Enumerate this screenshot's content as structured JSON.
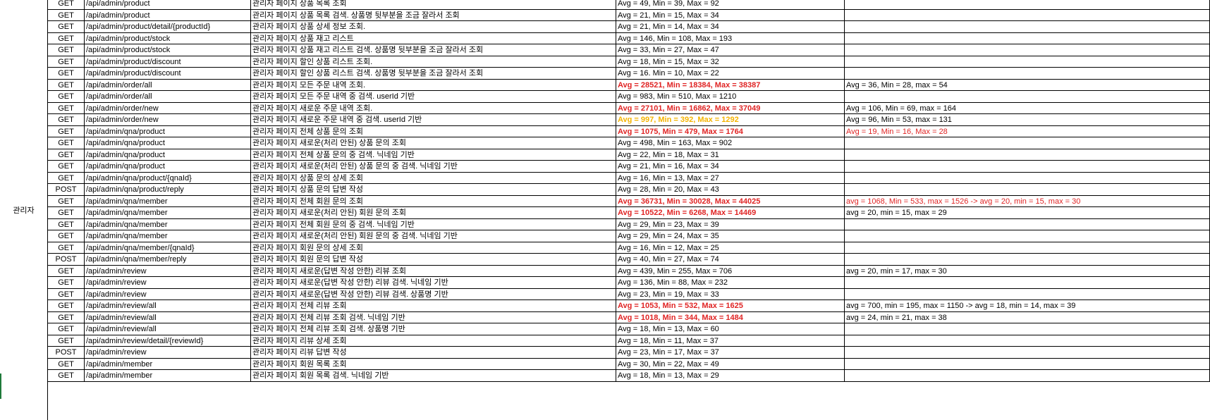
{
  "section_label": "관리자",
  "colors": {
    "red": "#e02424",
    "orange": "#f5b400",
    "black": "#000000"
  },
  "rows": [
    {
      "method": "GET",
      "path": "/api/admin/product",
      "desc": "관리자 페이지 상품 목록 조회",
      "result": "Avg = 49, Min = 39, Max = 92",
      "result_style": "normal",
      "improved": "",
      "improved_style": "normal"
    },
    {
      "method": "GET",
      "path": "/api/admin/product",
      "desc": "관리자 페이지 상품 목록 검색. 상품명 뒷부분을 조금 잘라서 조회",
      "result": "Avg = 21, Min = 15, Max = 34",
      "result_style": "normal",
      "improved": "",
      "improved_style": "normal"
    },
    {
      "method": "GET",
      "path": "/api/admin/product/detail/{productId}",
      "desc": "관리자 페이지 상품 상세 정보 조회.",
      "result": "Avg = 21, Min = 14, Max = 34",
      "result_style": "normal",
      "improved": "",
      "improved_style": "normal"
    },
    {
      "method": "GET",
      "path": "/api/admin/product/stock",
      "desc": "관리자 페이지 상품 재고 리스트",
      "result": "Avg = 146, Min = 108, Max = 193",
      "result_style": "normal",
      "improved": "",
      "improved_style": "normal"
    },
    {
      "method": "GET",
      "path": "/api/admin/product/stock",
      "desc": "관리자 페이지 상품 재고 리스트 검색. 상품명 뒷부분을 조금 잘라서 조회",
      "result": "Avg = 33, Min = 27, Max = 47",
      "result_style": "normal",
      "improved": "",
      "improved_style": "normal"
    },
    {
      "method": "GET",
      "path": "/api/admin/product/discount",
      "desc": "관리자 페이지 할인 상품 리스트 조회.",
      "result": "Avg = 18, Min = 15, Max = 32",
      "result_style": "normal",
      "improved": "",
      "improved_style": "normal"
    },
    {
      "method": "GET",
      "path": "/api/admin/product/discount",
      "desc": "관리자 페이지 할인 상품 리스트 검색. 상품명 뒷부분을 조금 잘라서 조회",
      "result": "Avg = 16. Min = 10, Max = 22",
      "result_style": "normal",
      "improved": "",
      "improved_style": "normal"
    },
    {
      "method": "GET",
      "path": "/api/admin/order/all",
      "desc": "관리자 페이지 모든 주문 내역 조회.",
      "result": "Avg = 28521, Min = 18384, Max = 38387",
      "result_style": "red-bold",
      "improved": "Avg = 36, Min = 28, max = 54",
      "improved_style": "normal"
    },
    {
      "method": "GET",
      "path": "/api/admin/order/all",
      "desc": "관리자 페이지 모든 주문 내역 중 검색. userId 기반",
      "result": "Avg = 983, Min = 510, Max = 1210",
      "result_style": "normal",
      "improved": "",
      "improved_style": "normal"
    },
    {
      "method": "GET",
      "path": "/api/admin/order/new",
      "desc": "관리자 페이지 새로운 주문 내역 조회.",
      "result": "Avg = 27101, Min = 16862, Max = 37049",
      "result_style": "red-bold",
      "improved": "Avg = 106, Min = 69, max = 164",
      "improved_style": "normal"
    },
    {
      "method": "GET",
      "path": "/api/admin/order/new",
      "desc": "관리자 페이지 새로운 주문 내역 중 검색. userId 기반",
      "result": "Avg = 997, Min = 392, Max = 1292",
      "result_style": "orange-bold",
      "improved": "Avg = 96, Min = 53, max = 131",
      "improved_style": "normal"
    },
    {
      "method": "GET",
      "path": "/api/admin/qna/product",
      "desc": "관리자 페이지 전체 상품 문의 조회",
      "result": "Avg = 1075, Min = 479, Max = 1764",
      "result_style": "red-bold",
      "improved": "Avg = 19, Min = 16, Max = 28",
      "improved_style": "red"
    },
    {
      "method": "GET",
      "path": "/api/admin/qna/product",
      "desc": "관리자 페이지 새로운(처리 안된) 상품 문의 조회",
      "result": "Avg = 498, Min = 163, Max = 902",
      "result_style": "normal",
      "improved": "",
      "improved_style": "normal"
    },
    {
      "method": "GET",
      "path": "/api/admin/qna/product",
      "desc": "관리자 페이지 전체 상품 문의 중 검색. 닉네임 기반",
      "result": "Avg = 22, Min = 18, Max = 31",
      "result_style": "normal",
      "improved": "",
      "improved_style": "normal"
    },
    {
      "method": "GET",
      "path": "/api/admin/qna/product",
      "desc": "관리자 페이지 새로운(처리 안된) 상품 문의 중 검색. 닉네임 기반",
      "result": "Avg = 21, Min = 16, Max = 34",
      "result_style": "normal",
      "improved": "",
      "improved_style": "normal"
    },
    {
      "method": "GET",
      "path": "/api/admin/qna/product/{qnaId}",
      "desc": "관리자 페이지 상품 문의 상세 조회",
      "result": "Avg = 16, Min = 13, Max = 27",
      "result_style": "normal",
      "improved": "",
      "improved_style": "normal"
    },
    {
      "method": "POST",
      "path": "/api/admin/qna/product/reply",
      "desc": "관리자 페이지 상품 문의 답변 작성",
      "result": "Avg = 28, Min = 20, Max = 43",
      "result_style": "normal",
      "improved": "",
      "improved_style": "normal"
    },
    {
      "method": "GET",
      "path": "/api/admin/qna/member",
      "desc": "관리자 페이지 전체 회원 문의 조회",
      "result": "Avg = 36731, Min = 30028, Max = 44025",
      "result_style": "red-bold",
      "improved": "avg = 1068, Min = 533, max = 1526 -> avg = 20, min = 15, max = 30",
      "improved_style": "red"
    },
    {
      "method": "GET",
      "path": "/api/admin/qna/member",
      "desc": "관리자 페이지 새로운(처리 안된) 회원 문의 조회",
      "result": "Avg = 10522, Min = 6268, Max = 14469",
      "result_style": "red-bold",
      "improved": "avg = 20, min = 15, max = 29",
      "improved_style": "normal"
    },
    {
      "method": "GET",
      "path": "/api/admin/qna/member",
      "desc": "관리자 페이지 전체 회원 문의 중 검색. 닉네임 기반",
      "result": "Avg = 29, Min = 23, Max = 39",
      "result_style": "normal",
      "improved": "",
      "improved_style": "normal"
    },
    {
      "method": "GET",
      "path": "/api/admin/qna/member",
      "desc": "관리자 페이지 새로운(처리 안된) 회원 문의 중 검색. 닉네임 기반",
      "result": "Avg = 29, Min = 24, Max = 35",
      "result_style": "normal",
      "improved": "",
      "improved_style": "normal"
    },
    {
      "method": "GET",
      "path": "/api/admin/qna/member/{qnaId}",
      "desc": "관리자 페이지 회원 문의 상세 조회",
      "result": "Avg = 16, Min = 12, Max = 25",
      "result_style": "normal",
      "improved": "",
      "improved_style": "normal"
    },
    {
      "method": "POST",
      "path": "/api/admin/qna/member/reply",
      "desc": "관리자 페이지 회원 문의 답변 작성",
      "result": "Avg = 40, Min = 27, Max = 74",
      "result_style": "normal",
      "improved": "",
      "improved_style": "normal"
    },
    {
      "method": "GET",
      "path": "/api/admin/review",
      "desc": "관리자 페이지 새로운(답변 작성 안한) 리뷰 조회",
      "result": "Avg = 439, Min = 255, Max = 706",
      "result_style": "normal",
      "improved": "avg = 20, min = 17, max = 30",
      "improved_style": "normal"
    },
    {
      "method": "GET",
      "path": "/api/admin/review",
      "desc": "관리자 페이지 새로운(답변 작성 안한) 리뷰 검색. 닉네임 기반",
      "result": "Avg = 136, Min = 88, Max = 232",
      "result_style": "normal",
      "improved": "",
      "improved_style": "normal"
    },
    {
      "method": "GET",
      "path": "/api/admin/review",
      "desc": "관리자 페이지 새로운(답변 작성 안한) 리뷰 검색. 상품명 기반",
      "result": "Avg = 23, Min = 19, Max = 33",
      "result_style": "normal",
      "improved": "",
      "improved_style": "normal"
    },
    {
      "method": "GET",
      "path": "/api/admin/review/all",
      "desc": "관리자 페이지 전체 리뷰 조회",
      "result": "Avg = 1053, Min = 532, Max = 1625",
      "result_style": "red-bold",
      "improved": "avg = 700, min = 195, max = 1150 -> avg = 18, min = 14, max = 39",
      "improved_style": "normal"
    },
    {
      "method": "GET",
      "path": "/api/admin/review/all",
      "desc": "관리자 페이지 전체 리뷰 조회 검색. 닉네임 기반",
      "result": "Avg = 1018, Min = 344, Max = 1484",
      "result_style": "red-bold",
      "improved": "avg = 24, min = 21, max = 38",
      "improved_style": "normal"
    },
    {
      "method": "GET",
      "path": "/api/admin/review/all",
      "desc": "관리자 페이지 전체 리뷰 조회 검색. 상품명 기반",
      "result": "Avg = 18, Min = 13, Max = 60",
      "result_style": "normal",
      "improved": "",
      "improved_style": "normal"
    },
    {
      "method": "GET",
      "path": "/api/admin/review/detail/{reviewId}",
      "desc": "관리자 페이지 리뷰 상세 조회",
      "result": "Avg = 18, Min = 11, Max = 37",
      "result_style": "normal",
      "improved": "",
      "improved_style": "normal"
    },
    {
      "method": "POST",
      "path": "/api/admin/review",
      "desc": "관리자 페이지 리뷰 답변 작성",
      "result": "Avg = 23, Min = 17, Max = 37",
      "result_style": "normal",
      "improved": "",
      "improved_style": "normal"
    },
    {
      "method": "GET",
      "path": "/api/admin/member",
      "desc": "관리자 페이지 회원 목록 조회",
      "result": "Avg = 30, Min = 22, Max = 49",
      "result_style": "normal",
      "improved": "",
      "improved_style": "normal"
    },
    {
      "method": "GET",
      "path": "/api/admin/member",
      "desc": "관리자 페이지 회원 목록 검색. 닉네임 기반",
      "result": "Avg = 18, Min = 13, Max = 29",
      "result_style": "normal",
      "improved": "",
      "improved_style": "normal"
    }
  ]
}
